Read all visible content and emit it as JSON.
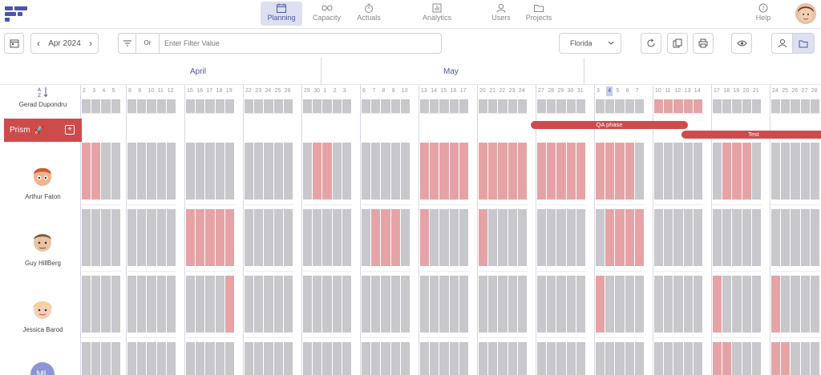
{
  "nav": {
    "items": [
      {
        "label": "Planning",
        "icon": "calendar-icon",
        "active": true
      },
      {
        "label": "Capacity",
        "icon": "infinity-icon",
        "active": false
      },
      {
        "label": "Actuals",
        "icon": "stopwatch-icon",
        "active": false
      },
      {
        "label": "Analytics",
        "icon": "bar-chart-icon",
        "active": false
      },
      {
        "label": "Users",
        "icon": "user-icon",
        "active": false
      },
      {
        "label": "Projects",
        "icon": "folder-icon",
        "active": false
      }
    ],
    "help_label": "Help"
  },
  "toolbar": {
    "date_label": "Apr 2024",
    "filter_mode": "Or",
    "filter_placeholder": "Enter Filter Value",
    "region": "Florida"
  },
  "months": [
    "April",
    "May"
  ],
  "weeks": [
    [
      "2",
      "3",
      "4",
      "5"
    ],
    [
      "8",
      "9",
      "10",
      "11",
      "12"
    ],
    [
      "15",
      "16",
      "17",
      "18",
      "19"
    ],
    [
      "22",
      "23",
      "24",
      "25",
      "26"
    ],
    [
      "29",
      "30",
      "1",
      "2",
      "3"
    ],
    [
      "6",
      "7",
      "8",
      "9",
      "10"
    ],
    [
      "13",
      "14",
      "15",
      "16",
      "17"
    ],
    [
      "20",
      "21",
      "22",
      "23",
      "24"
    ],
    [
      "27",
      "28",
      "29",
      "30",
      "31"
    ],
    [
      "3",
      "4",
      "5",
      "6",
      "7"
    ],
    [
      "10",
      "11",
      "12",
      "13",
      "14"
    ],
    [
      "17",
      "18",
      "19",
      "20",
      "21"
    ],
    [
      "24",
      "25",
      "26",
      "27",
      "28"
    ]
  ],
  "sort_icon": "sort-az-icon",
  "today_day": "4",
  "people": [
    {
      "name": "Gerad Dupondru"
    },
    {
      "name": "Arthur Faton"
    },
    {
      "name": "Guy HillBerg"
    },
    {
      "name": "Jessica Barod"
    },
    {
      "name": "",
      "initials": "ML"
    }
  ],
  "project": {
    "name": "Prism",
    "add_icon": "plus-icon"
  },
  "phases": [
    {
      "label": "QA phase"
    },
    {
      "label": "Test"
    }
  ],
  "colors": {
    "accent": "#4a56a8",
    "red": "#cf4b4b",
    "booked": "#c7c7cc",
    "overbooked": "#e6a3a6"
  }
}
